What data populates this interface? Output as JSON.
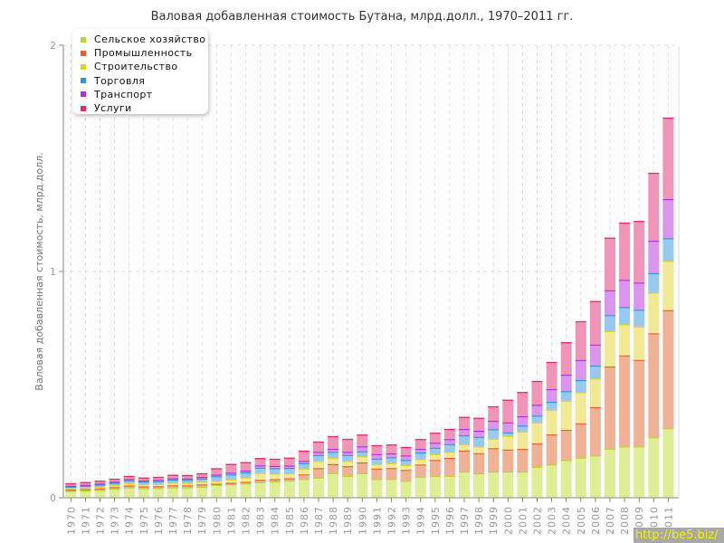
{
  "chart_data": {
    "type": "bar",
    "stacked": true,
    "title": "Валовая добавленная стоимость Бутана, млрд.долл., 1970–2011 гг.",
    "xlabel": "",
    "ylabel": "Валовая добавленная стоимость, млрд.долл.",
    "ylim": [
      0,
      2
    ],
    "yticks": [
      "0",
      "1",
      "2"
    ],
    "grid": true,
    "legend_position": "top-left",
    "categories": [
      "1970",
      "1971",
      "1972",
      "1973",
      "1974",
      "1975",
      "1976",
      "1977",
      "1978",
      "1979",
      "1980",
      "1981",
      "1982",
      "1983",
      "1984",
      "1985",
      "1986",
      "1987",
      "1988",
      "1989",
      "1990",
      "1991",
      "1992",
      "1993",
      "1994",
      "1995",
      "1996",
      "1997",
      "1998",
      "1999",
      "2000",
      "2001",
      "2002",
      "2003",
      "2004",
      "2005",
      "2006",
      "2007",
      "2008",
      "2009",
      "2010",
      "2011"
    ],
    "series": [
      {
        "name": "Сельское хозяйство",
        "color": "#b5d62b",
        "fill": "#dcec90",
        "values": [
          0.03,
          0.032,
          0.034,
          0.04,
          0.046,
          0.042,
          0.043,
          0.046,
          0.046,
          0.049,
          0.057,
          0.06,
          0.063,
          0.069,
          0.072,
          0.076,
          0.083,
          0.089,
          0.109,
          0.097,
          0.109,
          0.083,
          0.083,
          0.075,
          0.093,
          0.097,
          0.097,
          0.116,
          0.108,
          0.116,
          0.116,
          0.116,
          0.137,
          0.147,
          0.167,
          0.177,
          0.187,
          0.217,
          0.227,
          0.227,
          0.267,
          0.307
        ]
      },
      {
        "name": "Промышленность",
        "color": "#e8612c",
        "fill": "#eeae90",
        "values": [
          0.006,
          0.006,
          0.007,
          0.007,
          0.008,
          0.008,
          0.008,
          0.009,
          0.009,
          0.01,
          0.005,
          0.006,
          0.007,
          0.01,
          0.01,
          0.01,
          0.02,
          0.042,
          0.04,
          0.043,
          0.047,
          0.046,
          0.048,
          0.048,
          0.054,
          0.07,
          0.079,
          0.093,
          0.089,
          0.103,
          0.097,
          0.1,
          0.103,
          0.133,
          0.133,
          0.152,
          0.213,
          0.363,
          0.402,
          0.382,
          0.46,
          0.522
        ]
      },
      {
        "name": "Строительство",
        "color": "#e3cf2a",
        "fill": "#f0e890",
        "values": [
          0.006,
          0.007,
          0.008,
          0.009,
          0.011,
          0.01,
          0.01,
          0.012,
          0.011,
          0.012,
          0.013,
          0.015,
          0.02,
          0.03,
          0.025,
          0.022,
          0.025,
          0.032,
          0.027,
          0.023,
          0.027,
          0.02,
          0.022,
          0.021,
          0.024,
          0.026,
          0.027,
          0.028,
          0.03,
          0.042,
          0.06,
          0.077,
          0.093,
          0.109,
          0.129,
          0.138,
          0.127,
          0.157,
          0.138,
          0.148,
          0.18,
          0.218
        ]
      },
      {
        "name": "Торговля",
        "color": "#2d96dc",
        "fill": "#92c6ee",
        "values": [
          0.007,
          0.008,
          0.009,
          0.01,
          0.012,
          0.011,
          0.012,
          0.013,
          0.013,
          0.014,
          0.02,
          0.022,
          0.022,
          0.024,
          0.024,
          0.024,
          0.025,
          0.026,
          0.027,
          0.026,
          0.022,
          0.024,
          0.026,
          0.023,
          0.029,
          0.028,
          0.034,
          0.039,
          0.042,
          0.042,
          0.016,
          0.026,
          0.03,
          0.035,
          0.042,
          0.053,
          0.057,
          0.07,
          0.076,
          0.074,
          0.086,
          0.1
        ]
      },
      {
        "name": "Транспорт",
        "color": "#b22fdf",
        "fill": "#d690ec",
        "values": [
          0.004,
          0.004,
          0.005,
          0.005,
          0.006,
          0.005,
          0.006,
          0.006,
          0.006,
          0.007,
          0.007,
          0.008,
          0.008,
          0.01,
          0.01,
          0.01,
          0.01,
          0.014,
          0.013,
          0.014,
          0.022,
          0.02,
          0.017,
          0.02,
          0.016,
          0.022,
          0.022,
          0.028,
          0.027,
          0.037,
          0.044,
          0.041,
          0.048,
          0.056,
          0.073,
          0.089,
          0.093,
          0.11,
          0.12,
          0.12,
          0.143,
          0.173
        ]
      },
      {
        "name": "Услуги",
        "color": "#e52a6a",
        "fill": "#ee90b4",
        "values": [
          0.011,
          0.012,
          0.012,
          0.013,
          0.013,
          0.013,
          0.013,
          0.015,
          0.015,
          0.016,
          0.028,
          0.038,
          0.037,
          0.032,
          0.031,
          0.035,
          0.045,
          0.045,
          0.056,
          0.057,
          0.052,
          0.039,
          0.039,
          0.037,
          0.043,
          0.044,
          0.045,
          0.053,
          0.057,
          0.064,
          0.1,
          0.107,
          0.105,
          0.12,
          0.143,
          0.171,
          0.192,
          0.232,
          0.253,
          0.272,
          0.3,
          0.36
        ]
      }
    ]
  },
  "watermark": "http://be5.biz/"
}
